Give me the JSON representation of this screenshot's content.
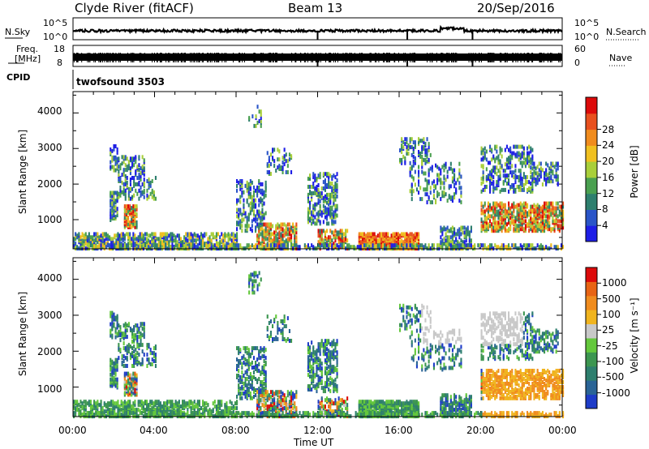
{
  "header": {
    "station": "Clyde River (fitACF)",
    "beam": "Beam 13",
    "date": "20/Sep/2016"
  },
  "noise_panel": {
    "left_label": "N.Sky",
    "right_label": "N.Search",
    "ticks_left": [
      "10^5",
      "10^0"
    ],
    "ticks_right": [
      "10^5",
      "10^0"
    ]
  },
  "freq_panel": {
    "left_label_line1": "Freq.",
    "left_label_line2": "[MHz]",
    "ticks_left": [
      "18",
      "8"
    ],
    "right_label": "Nave",
    "ticks_right": [
      "60",
      "0"
    ]
  },
  "cpid": {
    "label": "CPID",
    "program": "twofsound 3503"
  },
  "colors": {
    "power_scale": [
      "#1e1ee6",
      "#2a55c8",
      "#2e7f6e",
      "#4aa050",
      "#a9cf3a",
      "#f0c020",
      "#f08c1e",
      "#e8501e",
      "#dc0a0a"
    ],
    "velocity_scale": [
      "#1e3cc8",
      "#2a6496",
      "#2e7f6e",
      "#3c9650",
      "#64c83c",
      "#c8c8c8",
      "#f0b41e",
      "#f08c1e",
      "#e86414",
      "#dc0a0a"
    ]
  },
  "chart_data": [
    {
      "type": "heatmap",
      "name": "power",
      "ylabel": "Slant Range [km]",
      "y_ticks": [
        1000,
        2000,
        3000,
        4000
      ],
      "ylim": [
        180,
        4600
      ],
      "colorbar_label": "Power [dB]",
      "colorbar_ticks": [
        "4",
        "8",
        "12",
        "16",
        "20",
        "24",
        "28"
      ],
      "clim": [
        0,
        32
      ]
    },
    {
      "type": "heatmap",
      "name": "velocity",
      "ylabel": "Slant Range [km]",
      "y_ticks": [
        1000,
        2000,
        3000,
        4000
      ],
      "ylim": [
        180,
        4600
      ],
      "colorbar_label": "Velocity [m s⁻¹]",
      "colorbar_ticks": [
        "1000",
        "500",
        "100",
        "25",
        "-25",
        "-100",
        "-500",
        "-1000"
      ],
      "xlabel": "Time UT",
      "x_ticks": [
        "00:00",
        "04:00",
        "08:00",
        "12:00",
        "16:00",
        "20:00",
        "00:00"
      ],
      "xlim_hours": [
        0,
        24
      ]
    }
  ]
}
